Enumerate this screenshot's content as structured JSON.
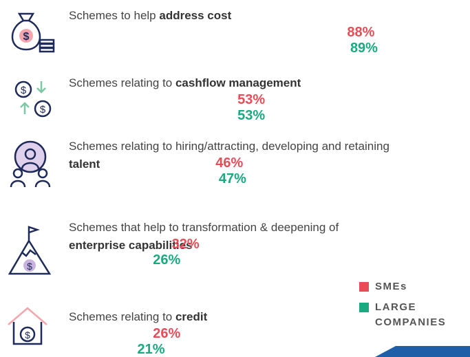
{
  "chart_data": {
    "type": "bar",
    "orientation": "horizontal",
    "categories": [
      [
        {
          "text": "Schemes to help ",
          "bold": false
        },
        {
          "text": "address cost",
          "bold": true
        }
      ],
      [
        {
          "text": "Schemes relating to ",
          "bold": false
        },
        {
          "text": "cashflow management",
          "bold": true
        }
      ],
      [
        {
          "text": "Schemes relating to hiring/attracting, developing and retaining ",
          "bold": false
        },
        {
          "text": "talent",
          "bold": true
        }
      ],
      [
        {
          "text": "Schemes that help to transformation & deepening of ",
          "bold": false
        },
        {
          "text": "enterprise capabilities",
          "bold": true
        }
      ],
      [
        {
          "text": "Schemes relating to ",
          "bold": false
        },
        {
          "text": "credit",
          "bold": true
        }
      ]
    ],
    "series": [
      {
        "name": "SMEs",
        "color": "#e84c57",
        "values": [
          88,
          53,
          46,
          32,
          26
        ],
        "value_labels": [
          "88%",
          "53%",
          "46%",
          "32%",
          "26%"
        ]
      },
      {
        "name": "LARGE COMPANIES",
        "color": "#1aaa80",
        "values": [
          89,
          53,
          47,
          26,
          21
        ],
        "value_labels": [
          "89%",
          "53%",
          "47%",
          "26%",
          "21%"
        ]
      }
    ],
    "legend": "bottom-right"
  }
}
